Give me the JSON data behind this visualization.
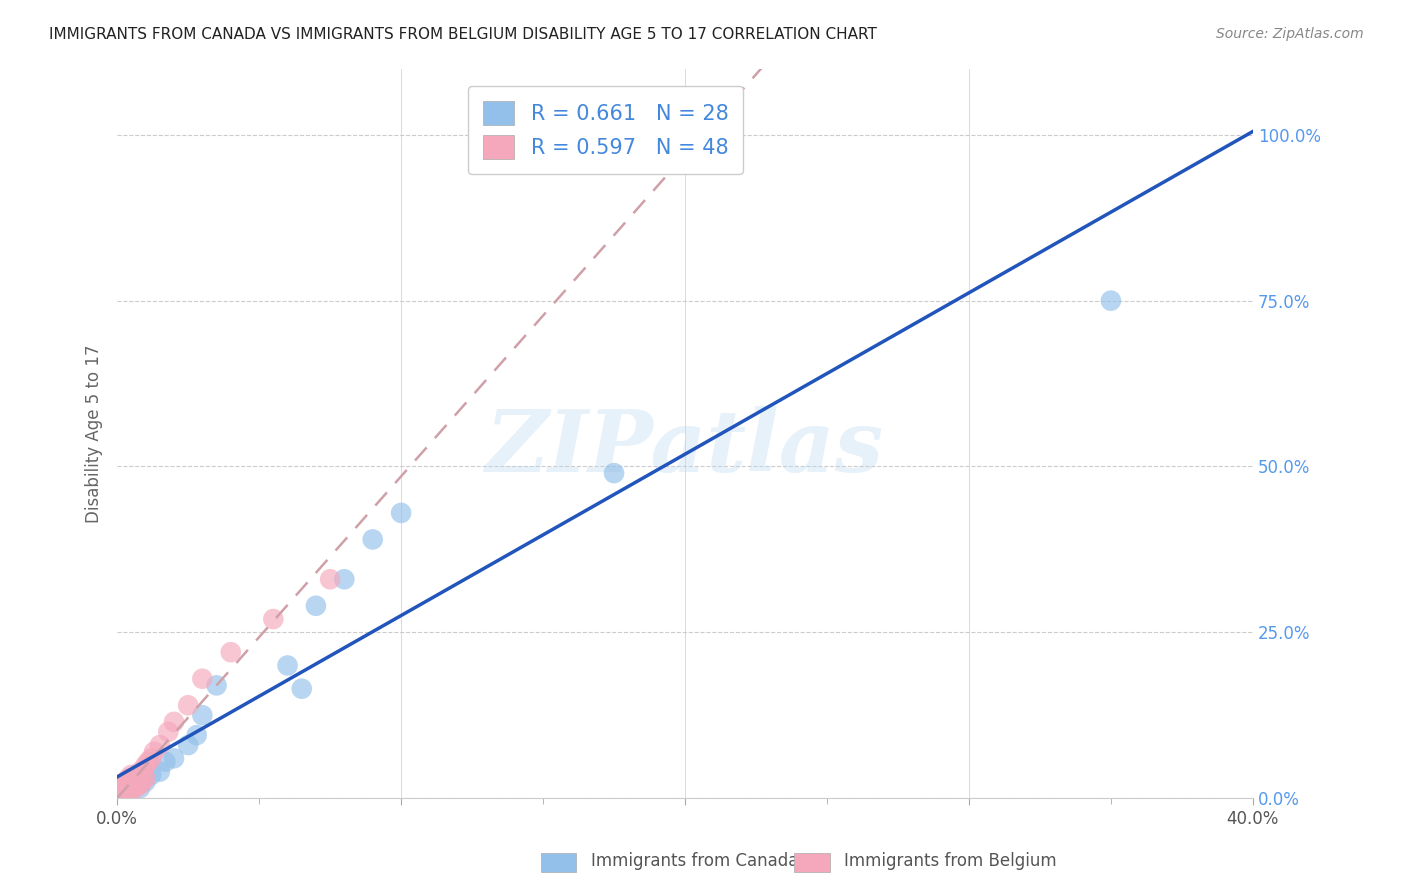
{
  "title": "IMMIGRANTS FROM CANADA VS IMMIGRANTS FROM BELGIUM DISABILITY AGE 5 TO 17 CORRELATION CHART",
  "source": "Source: ZipAtlas.com",
  "ylabel": "Disability Age 5 to 17",
  "xlabel_canada": "Immigrants from Canada",
  "xlabel_belgium": "Immigrants from Belgium",
  "xmin": 0.0,
  "xmax": 0.4,
  "ymin": 0.0,
  "ymax": 1.1,
  "yticks": [
    0.0,
    0.25,
    0.5,
    0.75,
    1.0
  ],
  "ytick_labels": [
    "0.0%",
    "25.0%",
    "50.0%",
    "75.0%",
    "100.0%"
  ],
  "xticks": [
    0.0,
    0.1,
    0.2,
    0.3,
    0.4
  ],
  "xtick_labels": [
    "0.0%",
    "",
    "",
    "",
    "40.0%"
  ],
  "R_canada": 0.661,
  "N_canada": 28,
  "R_belgium": 0.597,
  "N_belgium": 48,
  "canada_color": "#92c0ea",
  "belgium_color": "#f5a8bc",
  "canada_line_color": "#2255bb",
  "belgium_line_color": "#e8788a",
  "belgium_trendline_color": "#d0a0a8",
  "canada_points_x": [
    0.001,
    0.001,
    0.002,
    0.002,
    0.003,
    0.003,
    0.004,
    0.005,
    0.006,
    0.007,
    0.008,
    0.01,
    0.012,
    0.015,
    0.017,
    0.02,
    0.025,
    0.028,
    0.03,
    0.035,
    0.06,
    0.065,
    0.07,
    0.08,
    0.09,
    0.1,
    0.175,
    0.35
  ],
  "canada_points_y": [
    0.003,
    0.008,
    0.005,
    0.015,
    0.008,
    0.02,
    0.01,
    0.015,
    0.02,
    0.025,
    0.015,
    0.025,
    0.035,
    0.04,
    0.055,
    0.06,
    0.08,
    0.095,
    0.125,
    0.17,
    0.2,
    0.165,
    0.29,
    0.33,
    0.39,
    0.43,
    0.49,
    0.75
  ],
  "belgium_points_x": [
    0.001,
    0.001,
    0.001,
    0.001,
    0.001,
    0.001,
    0.002,
    0.002,
    0.002,
    0.002,
    0.002,
    0.003,
    0.003,
    0.003,
    0.003,
    0.003,
    0.004,
    0.004,
    0.004,
    0.004,
    0.005,
    0.005,
    0.005,
    0.005,
    0.006,
    0.006,
    0.006,
    0.007,
    0.007,
    0.007,
    0.008,
    0.008,
    0.008,
    0.009,
    0.009,
    0.01,
    0.01,
    0.011,
    0.012,
    0.013,
    0.015,
    0.018,
    0.02,
    0.025,
    0.03,
    0.04,
    0.055,
    0.075
  ],
  "belgium_points_y": [
    0.003,
    0.005,
    0.008,
    0.01,
    0.012,
    0.015,
    0.005,
    0.008,
    0.012,
    0.018,
    0.022,
    0.006,
    0.01,
    0.015,
    0.02,
    0.025,
    0.008,
    0.015,
    0.02,
    0.03,
    0.01,
    0.018,
    0.025,
    0.035,
    0.015,
    0.022,
    0.03,
    0.018,
    0.025,
    0.035,
    0.02,
    0.028,
    0.04,
    0.025,
    0.04,
    0.03,
    0.05,
    0.055,
    0.06,
    0.07,
    0.08,
    0.1,
    0.115,
    0.14,
    0.18,
    0.22,
    0.27,
    0.33
  ],
  "watermark_text": "ZIPatlas",
  "background_color": "#ffffff",
  "grid_color": "#cccccc"
}
